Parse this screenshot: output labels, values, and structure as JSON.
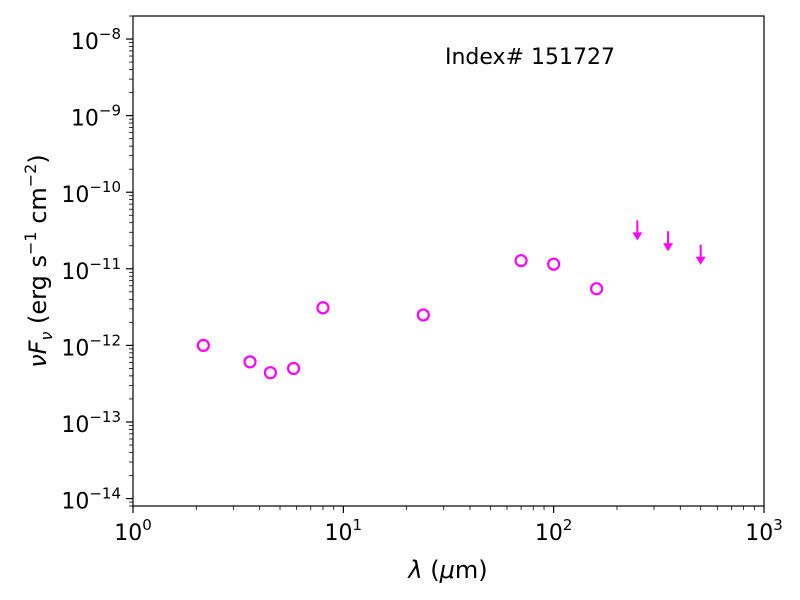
{
  "chart_data": {
    "type": "scatter",
    "annotation": "Index# 151727",
    "xlabel": "λ (μm)",
    "ylabel": "νF_ν (erg s^-1 cm^-2)",
    "xscale": "log",
    "yscale": "log",
    "xlim": [
      1,
      1000
    ],
    "ylim": [
      8e-15,
      2e-08
    ],
    "grid": false,
    "marker_color": "#ff00ff",
    "x_ticks": [
      {
        "value": 1,
        "base": "10",
        "exp": "0"
      },
      {
        "value": 10,
        "base": "10",
        "exp": "1"
      },
      {
        "value": 100,
        "base": "10",
        "exp": "2"
      },
      {
        "value": 1000,
        "base": "10",
        "exp": "3"
      }
    ],
    "y_ticks": [
      {
        "value": 1e-14,
        "base": "10",
        "exp": "−14"
      },
      {
        "value": 1e-13,
        "base": "10",
        "exp": "−13"
      },
      {
        "value": 1e-12,
        "base": "10",
        "exp": "−12"
      },
      {
        "value": 1e-11,
        "base": "10",
        "exp": "−11"
      },
      {
        "value": 1e-10,
        "base": "10",
        "exp": "−10"
      },
      {
        "value": 1e-09,
        "base": "10",
        "exp": "−9"
      },
      {
        "value": 1e-08,
        "base": "10",
        "exp": "−8"
      }
    ],
    "detections": [
      {
        "x": 2.16,
        "y": 1e-12
      },
      {
        "x": 3.6,
        "y": 6.1e-13
      },
      {
        "x": 4.5,
        "y": 4.4e-13
      },
      {
        "x": 5.8,
        "y": 5e-13
      },
      {
        "x": 8.0,
        "y": 3.1e-12
      },
      {
        "x": 24,
        "y": 2.5e-12
      },
      {
        "x": 70,
        "y": 1.28e-11
      },
      {
        "x": 100,
        "y": 1.15e-11
      },
      {
        "x": 160,
        "y": 5.5e-12
      }
    ],
    "upper_limits": [
      {
        "x": 250,
        "y": 2.5e-11
      },
      {
        "x": 350,
        "y": 1.8e-11
      },
      {
        "x": 500,
        "y": 1.2e-11
      }
    ]
  }
}
